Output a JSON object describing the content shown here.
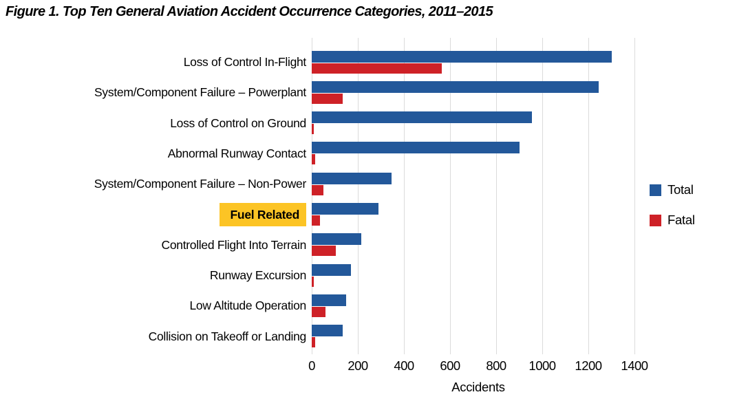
{
  "figure_title": "Figure 1. Top Ten General Aviation Accident Occurrence Categories, 2011–2015",
  "chart_data": {
    "type": "bar",
    "orientation": "horizontal",
    "title": "Figure 1. Top Ten General Aviation Accident Occurrence Categories, 2011–2015",
    "categories": [
      "Loss of Control In-Flight",
      "System/Component Failure – Powerplant",
      "Loss of Control on Ground",
      "Abnormal Runway Contact",
      "System/Component Failure – Non-Power",
      "Fuel Related",
      "Controlled Flight Into Terrain",
      "Runway Excursion",
      "Low Altitude Operation",
      "Collision on Takeoff or Landing"
    ],
    "series": [
      {
        "name": "Total",
        "color": "#23589A",
        "values": [
          1300,
          1245,
          955,
          900,
          345,
          290,
          215,
          170,
          150,
          135
        ]
      },
      {
        "name": "Fatal",
        "color": "#CE2127",
        "values": [
          565,
          135,
          10,
          15,
          50,
          35,
          105,
          10,
          60,
          15
        ]
      }
    ],
    "xlabel": "Accidents",
    "xlim": [
      0,
      1400
    ],
    "xticks": [
      0,
      200,
      400,
      600,
      800,
      1000,
      1200,
      1400
    ],
    "grid": true,
    "gridline_color": "#dbdbdb",
    "legend_position": "right",
    "legend_labels": [
      "Total",
      "Fatal"
    ],
    "highlighted_category": "Fuel Related",
    "highlight_color": "#FCC425"
  }
}
